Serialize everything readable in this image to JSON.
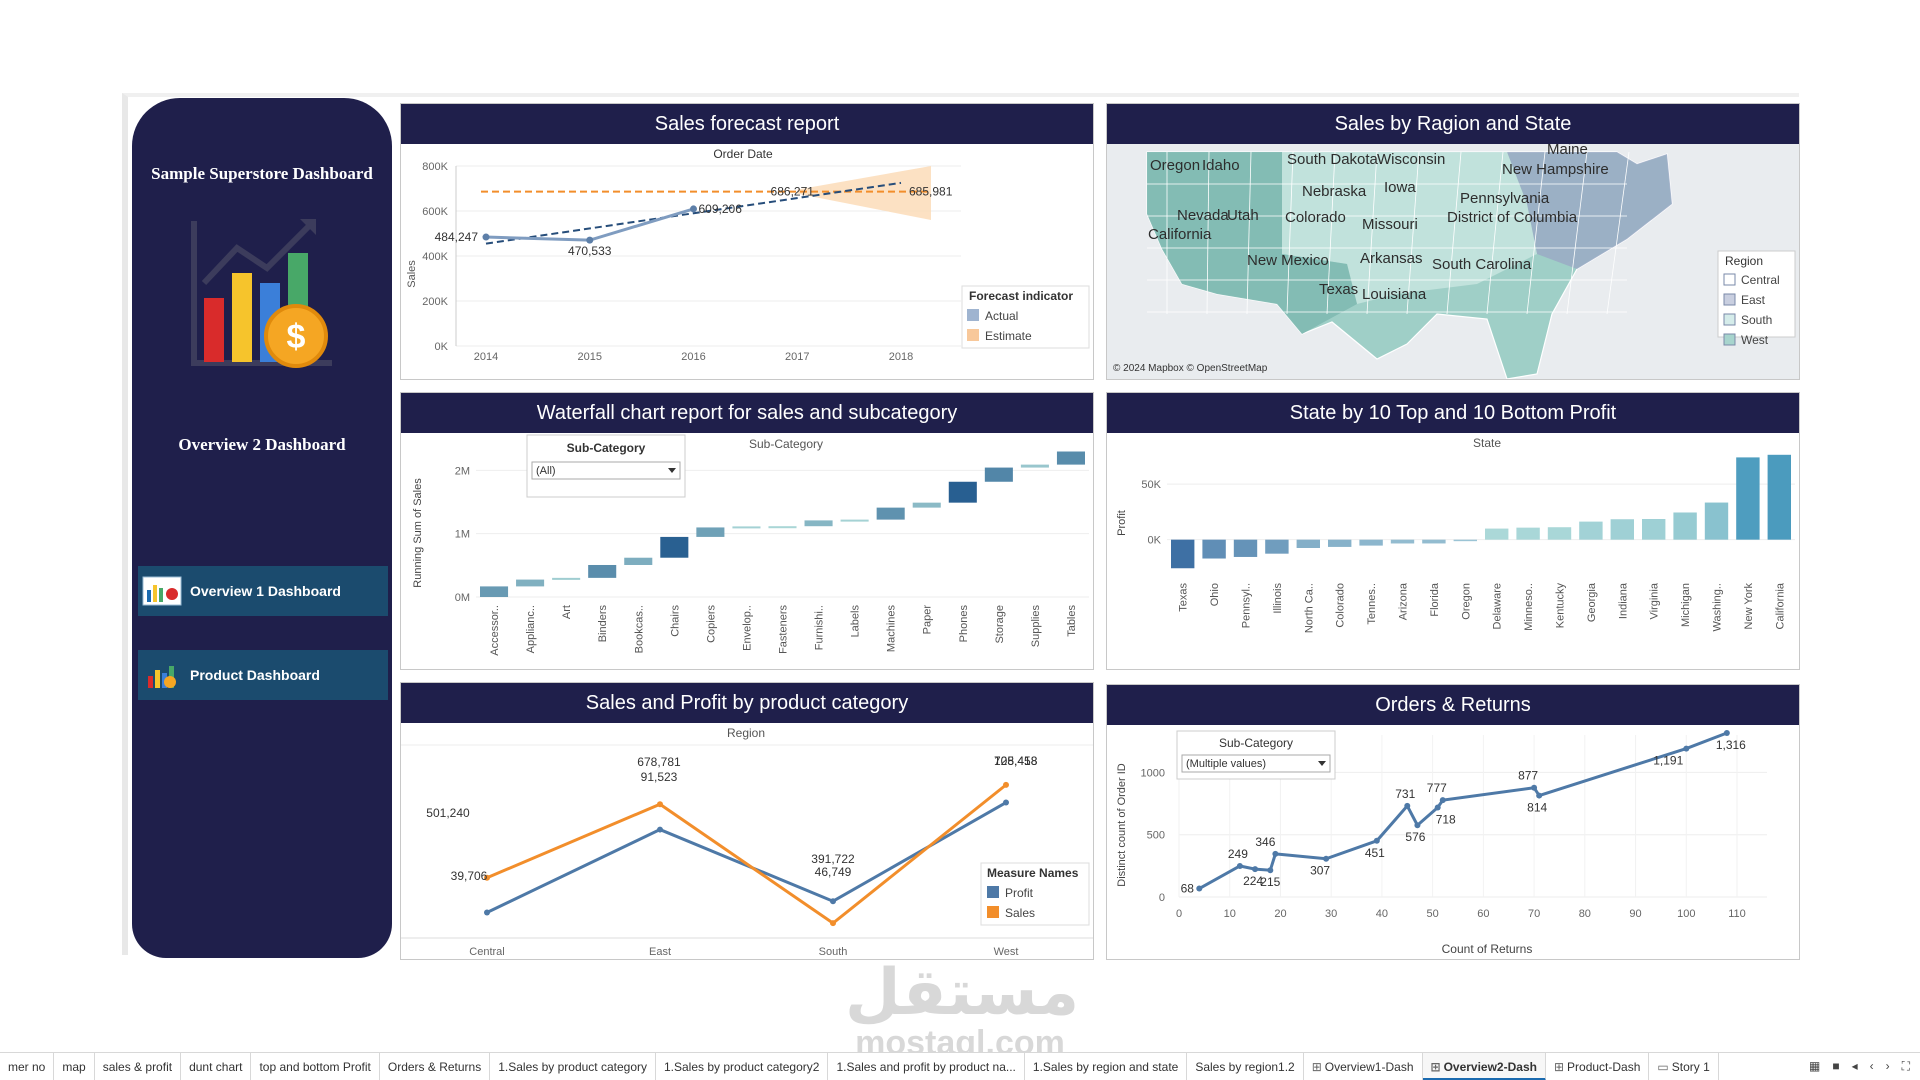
{
  "sidebar": {
    "title": "Sample Superstore Dashboard",
    "subtitle": "Overview 2 Dashboard",
    "nav": [
      {
        "label": "Overview 1 Dashboard",
        "icon": "dashboard-icon"
      },
      {
        "label": "Product Dashboard",
        "icon": "product-chart-icon"
      }
    ],
    "logo_icon": "sales-growth-chart-icon"
  },
  "panels": {
    "forecast": {
      "title": "Sales forecast report",
      "chart_data": {
        "type": "line",
        "top_label": "Order Date",
        "ylabel": "Sales",
        "x": [
          "2014",
          "2015",
          "2016",
          "2017",
          "2018"
        ],
        "y_ticks": [
          "0K",
          "200K",
          "400K",
          "600K",
          "800K"
        ],
        "ylim": [
          0,
          800000
        ],
        "series": [
          {
            "name": "Actual",
            "values": [
              484247,
              470533,
              609206,
              null,
              null
            ]
          },
          {
            "name": "Estimate",
            "values": [
              null,
              null,
              null,
              686271,
              685981
            ]
          }
        ],
        "labels": [
          "484,247",
          "470,533",
          "609,206",
          "686,271",
          "685,981"
        ],
        "legend_title": "Forecast indicator",
        "legend": [
          "Actual",
          "Estimate"
        ]
      }
    },
    "map": {
      "title": "Sales by Ragion and State",
      "states": [
        "Oregon",
        "Idaho",
        "South Dakota",
        "Wisconsin",
        "Maine",
        "New Hampshire",
        "Nebraska",
        "Iowa",
        "Pennsylvania",
        "Nevada",
        "Utah",
        "Colorado",
        "District of Columbia",
        "Missouri",
        "California",
        "New Mexico",
        "Arkansas",
        "South Carolina",
        "Texas",
        "Louisiana"
      ],
      "attribution": "© 2024 Mapbox © OpenStreetMap",
      "legend_title": "Region",
      "legend": [
        "Central",
        "East",
        "South",
        "West"
      ]
    },
    "waterfall": {
      "title": "Waterfall chart report for sales and subcategory",
      "filter_label": "Sub-Category",
      "filter_value": "(All)",
      "chart_data": {
        "type": "bar",
        "top_label": "Sub-Category",
        "ylabel": "Running Sum of Sales",
        "y_ticks": [
          "0M",
          "1M",
          "2M"
        ],
        "ylim": [
          0,
          2400000
        ],
        "categories": [
          "Accessor..",
          "Applianc..",
          "Art",
          "Binders",
          "Bookcas..",
          "Chairs",
          "Copiers",
          "Envelop..",
          "Fasteners",
          "Furnishi..",
          "Labels",
          "Machines",
          "Paper",
          "Phones",
          "Storage",
          "Supplies",
          "Tables"
        ],
        "values": [
          167380,
          107532,
          27119,
          203413,
          114880,
          328449,
          149528,
          16476,
          3024,
          91705,
          12486,
          189239,
          78479,
          330007,
          223844,
          46674,
          206966
        ]
      }
    },
    "profit_states": {
      "title": "State by 10 Top and 10 Bottom Profit",
      "chart_data": {
        "type": "bar",
        "top_label": "State",
        "ylabel": "Profit",
        "y_ticks": [
          "0K",
          "50K"
        ],
        "ylim": [
          -30000,
          78000
        ],
        "categories": [
          "Texas",
          "Ohio",
          "Pennsyl..",
          "Illinois",
          "North Ca..",
          "Colorado",
          "Tennes..",
          "Arizona",
          "Florida",
          "Oregon",
          "Delaware",
          "Minneso..",
          "Kentucky",
          "Georgia",
          "Indiana",
          "Virginia",
          "Michigan",
          "Washing..",
          "New York",
          "California"
        ],
        "values": [
          -25729,
          -16971,
          -15560,
          -12608,
          -7491,
          -6528,
          -5342,
          -3428,
          -3399,
          -1190,
          9977,
          10823,
          11200,
          16250,
          18383,
          18598,
          24463,
          33403,
          74039,
          76381
        ]
      }
    },
    "sales_profit": {
      "title": "Sales and Profit by product category",
      "chart_data": {
        "type": "line",
        "top_label": "Region",
        "categories": [
          "Central",
          "East",
          "South",
          "West"
        ],
        "series": [
          {
            "name": "Profit",
            "values": [
              39706,
              91523,
              46749,
              108418
            ]
          },
          {
            "name": "Sales",
            "values": [
              501240,
              678781,
              391722,
              725458
            ]
          }
        ],
        "labels": {
          "Profit": [
            "39,706",
            "91,523",
            "46,749",
            "108,418"
          ],
          "Sales": [
            "501,240",
            "678,781",
            "391,722",
            "725,458"
          ]
        },
        "legend_title": "Measure Names",
        "legend": [
          "Profit",
          "Sales"
        ]
      }
    },
    "orders_returns": {
      "title": "Orders & Returns",
      "filter_label": "Sub-Category",
      "filter_value": "(Multiple values)",
      "chart_data": {
        "type": "line",
        "xlabel": "Count of Returns",
        "ylabel": "Distinct count of Order ID",
        "x_ticks": [
          "0",
          "10",
          "20",
          "30",
          "40",
          "50",
          "60",
          "70",
          "80",
          "90",
          "100",
          "110"
        ],
        "y_ticks": [
          "0",
          "500",
          "1000"
        ],
        "xlim": [
          0,
          110
        ],
        "ylim": [
          0,
          1300
        ],
        "x": [
          4,
          12,
          15,
          18,
          19,
          29,
          39,
          45,
          47,
          51,
          52,
          70,
          71,
          100,
          108
        ],
        "y": [
          68,
          249,
          224,
          215,
          346,
          307,
          451,
          731,
          576,
          718,
          777,
          877,
          814,
          1191,
          1316
        ],
        "labels": [
          "68",
          "249",
          "224",
          "215",
          "346",
          "307",
          "451",
          "731",
          "576",
          "718",
          "777",
          "877",
          "814",
          "1,191",
          "1,316"
        ]
      }
    }
  },
  "tabs": [
    {
      "label": "mer no"
    },
    {
      "label": "map"
    },
    {
      "label": "sales & profit"
    },
    {
      "label": "dunt chart"
    },
    {
      "label": "top and bottom Profit"
    },
    {
      "label": "Orders & Returns"
    },
    {
      "label": "1.Sales by product category"
    },
    {
      "label": "1.Sales by product category2"
    },
    {
      "label": "1.Sales and profit by product na..."
    },
    {
      "label": "1.Sales by region and state"
    },
    {
      "label": "Sales by region1.2"
    },
    {
      "label": "Overview1-Dash",
      "icon": "dashboard-tab-icon"
    },
    {
      "label": "Overview2-Dash",
      "icon": "dashboard-tab-icon",
      "active": true
    },
    {
      "label": "Product-Dash",
      "icon": "dashboard-tab-icon"
    },
    {
      "label": "Story 1",
      "icon": "story-tab-icon"
    }
  ],
  "watermark": {
    "arabic": "مستقل",
    "latin": "mostaql.com"
  },
  "colors": {
    "navy": "#1f1f4b",
    "blue": "#4e79a7",
    "orange": "#f28e2b",
    "teal": "#76b7b2"
  }
}
